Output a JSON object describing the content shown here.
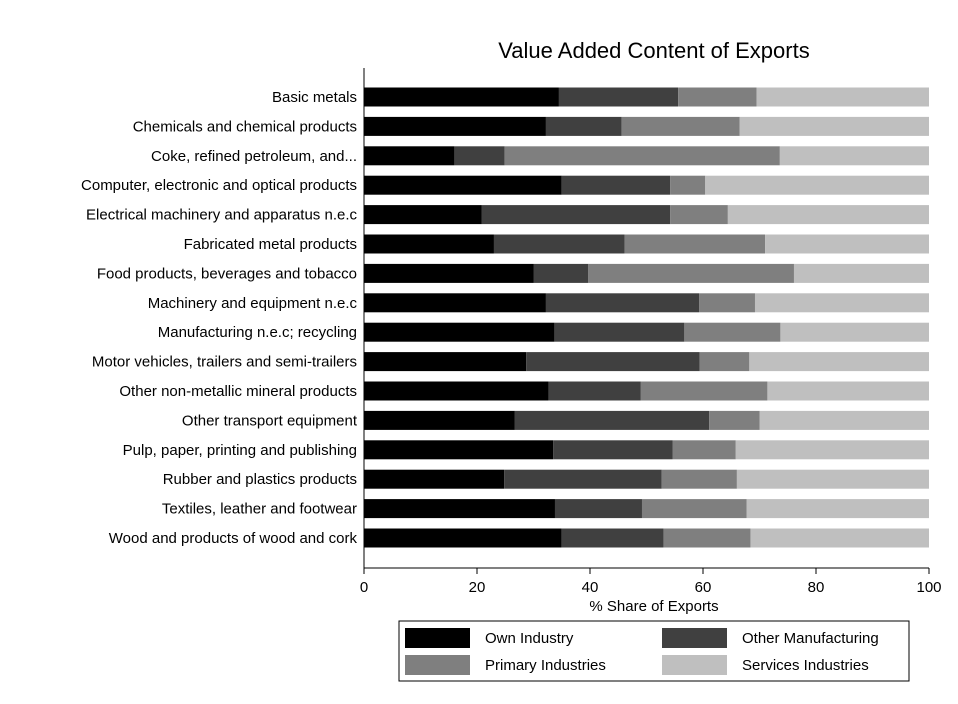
{
  "chart_data": {
    "type": "bar",
    "orientation": "horizontal",
    "stacked": true,
    "title": "Value Added Content of Exports",
    "xlabel": "% Share of Exports",
    "ylabel": "",
    "xlim": [
      0,
      100
    ],
    "xticks": [
      0,
      20,
      40,
      60,
      80,
      100
    ],
    "grid": false,
    "legend_position": "bottom",
    "categories": [
      "Basic metals",
      "Chemicals and chemical products",
      "Coke, refined petroleum, and...",
      "Computer, electronic and optical products",
      "Electrical machinery and apparatus n.e.c",
      "Fabricated metal products",
      "Food products, beverages and tobacco",
      "Machinery and equipment n.e.c",
      "Manufacturing n.e.c; recycling",
      "Motor vehicles, trailers and semi-trailers",
      "Other non-metallic mineral products",
      "Other transport equipment",
      "Pulp, paper, printing and publishing",
      "Rubber and plastics products",
      "Textiles, leather and footwear",
      "Wood and products of wood and cork"
    ],
    "series": [
      {
        "name": "Own Industry",
        "color": "#000000",
        "values": [
          34.5,
          32.2,
          16.0,
          35.0,
          20.8,
          23.0,
          30.0,
          32.2,
          33.7,
          28.7,
          32.7,
          26.7,
          33.5,
          24.8,
          33.8,
          35.0
        ]
      },
      {
        "name": "Other Manufacturing",
        "color": "#404040",
        "values": [
          21.1,
          13.4,
          8.9,
          19.2,
          33.4,
          23.1,
          9.7,
          27.1,
          23.0,
          30.7,
          16.3,
          34.4,
          21.1,
          27.9,
          15.4,
          18.0
        ]
      },
      {
        "name": "Primary Industries",
        "color": "#7f7f7f",
        "values": [
          13.9,
          20.9,
          48.7,
          6.2,
          10.2,
          24.9,
          36.4,
          9.9,
          17.0,
          8.8,
          22.4,
          8.9,
          11.2,
          13.3,
          18.5,
          15.4
        ]
      },
      {
        "name": "Services Industries",
        "color": "#bfbfbf",
        "values": [
          30.5,
          33.5,
          26.4,
          39.6,
          35.6,
          29.0,
          23.9,
          30.8,
          26.3,
          31.8,
          28.6,
          30.0,
          34.2,
          34.0,
          32.3,
          31.6
        ]
      }
    ]
  }
}
